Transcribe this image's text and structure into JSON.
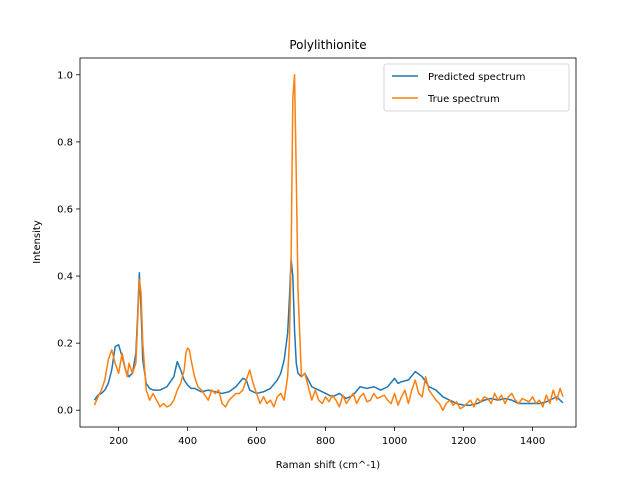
{
  "chart_data": {
    "type": "line",
    "title": "Polylithionite",
    "xlabel": "Raman shift (cm^-1)",
    "ylabel": "Intensity",
    "xlim": [
      88,
      1526
    ],
    "ylim": [
      -0.05,
      1.05
    ],
    "xticks": [
      200,
      400,
      600,
      800,
      1000,
      1200,
      1400
    ],
    "yticks": [
      0.0,
      0.2,
      0.4,
      0.6,
      0.8,
      1.0
    ],
    "grid": false,
    "legend_position": "top-right",
    "series": [
      {
        "name": "Predicted spectrum",
        "color": "#1f77b4",
        "x": [
          130,
          140,
          150,
          160,
          170,
          180,
          190,
          200,
          210,
          220,
          230,
          240,
          250,
          255,
          260,
          265,
          270,
          280,
          290,
          300,
          320,
          340,
          360,
          370,
          380,
          390,
          400,
          410,
          420,
          440,
          460,
          480,
          500,
          520,
          540,
          560,
          570,
          580,
          600,
          620,
          640,
          660,
          670,
          680,
          690,
          695,
          700,
          705,
          710,
          715,
          720,
          730,
          740,
          760,
          780,
          800,
          820,
          840,
          860,
          880,
          900,
          920,
          940,
          960,
          980,
          1000,
          1010,
          1020,
          1040,
          1060,
          1080,
          1100,
          1120,
          1140,
          1160,
          1180,
          1200,
          1220,
          1240,
          1260,
          1280,
          1300,
          1320,
          1340,
          1360,
          1380,
          1400,
          1420,
          1440,
          1460,
          1470,
          1480,
          1488
        ],
        "y": [
          0.03,
          0.045,
          0.05,
          0.06,
          0.08,
          0.12,
          0.19,
          0.195,
          0.16,
          0.12,
          0.1,
          0.11,
          0.17,
          0.28,
          0.41,
          0.3,
          0.15,
          0.08,
          0.065,
          0.06,
          0.06,
          0.07,
          0.1,
          0.145,
          0.12,
          0.09,
          0.075,
          0.065,
          0.065,
          0.055,
          0.06,
          0.055,
          0.05,
          0.055,
          0.07,
          0.095,
          0.09,
          0.06,
          0.05,
          0.055,
          0.065,
          0.09,
          0.11,
          0.15,
          0.23,
          0.33,
          0.45,
          0.4,
          0.24,
          0.14,
          0.11,
          0.1,
          0.11,
          0.07,
          0.06,
          0.05,
          0.04,
          0.05,
          0.035,
          0.045,
          0.07,
          0.065,
          0.07,
          0.06,
          0.07,
          0.095,
          0.08,
          0.085,
          0.09,
          0.115,
          0.1,
          0.07,
          0.06,
          0.04,
          0.03,
          0.02,
          0.015,
          0.015,
          0.02,
          0.03,
          0.035,
          0.03,
          0.035,
          0.03,
          0.02,
          0.02,
          0.02,
          0.02,
          0.025,
          0.035,
          0.04,
          0.03,
          0.022
        ]
      },
      {
        "name": "True spectrum",
        "color": "#ff7f0e",
        "x": [
          130,
          140,
          150,
          160,
          170,
          180,
          190,
          200,
          210,
          220,
          225,
          230,
          240,
          250,
          255,
          260,
          265,
          270,
          280,
          290,
          300,
          310,
          320,
          330,
          340,
          350,
          360,
          370,
          380,
          390,
          395,
          400,
          405,
          410,
          420,
          430,
          440,
          450,
          460,
          470,
          480,
          490,
          500,
          510,
          520,
          530,
          540,
          550,
          560,
          570,
          580,
          590,
          600,
          610,
          620,
          630,
          640,
          650,
          660,
          670,
          680,
          690,
          695,
          700,
          705,
          710,
          715,
          720,
          730,
          740,
          750,
          760,
          770,
          780,
          790,
          800,
          810,
          820,
          830,
          840,
          850,
          860,
          870,
          880,
          890,
          900,
          910,
          920,
          930,
          940,
          950,
          960,
          970,
          980,
          990,
          1000,
          1010,
          1020,
          1030,
          1040,
          1050,
          1060,
          1070,
          1080,
          1090,
          1100,
          1110,
          1120,
          1130,
          1140,
          1150,
          1160,
          1170,
          1180,
          1190,
          1200,
          1210,
          1220,
          1230,
          1240,
          1250,
          1260,
          1270,
          1280,
          1290,
          1300,
          1310,
          1320,
          1330,
          1340,
          1350,
          1360,
          1370,
          1380,
          1390,
          1400,
          1410,
          1420,
          1430,
          1440,
          1450,
          1460,
          1470,
          1480,
          1488
        ],
        "y": [
          0.015,
          0.04,
          0.06,
          0.09,
          0.15,
          0.18,
          0.14,
          0.11,
          0.17,
          0.12,
          0.1,
          0.14,
          0.11,
          0.14,
          0.26,
          0.39,
          0.35,
          0.2,
          0.06,
          0.03,
          0.05,
          0.03,
          0.01,
          0.02,
          0.01,
          0.015,
          0.03,
          0.06,
          0.08,
          0.12,
          0.17,
          0.185,
          0.18,
          0.15,
          0.1,
          0.07,
          0.06,
          0.045,
          0.03,
          0.06,
          0.05,
          0.06,
          0.02,
          0.01,
          0.03,
          0.04,
          0.05,
          0.05,
          0.06,
          0.09,
          0.12,
          0.08,
          0.05,
          0.02,
          0.04,
          0.02,
          0.03,
          0.01,
          0.04,
          0.05,
          0.03,
          0.1,
          0.2,
          0.45,
          0.93,
          1.0,
          0.7,
          0.36,
          0.1,
          0.11,
          0.07,
          0.03,
          0.06,
          0.03,
          0.02,
          0.04,
          0.025,
          0.045,
          0.03,
          0.01,
          0.045,
          0.02,
          0.035,
          0.05,
          0.02,
          0.04,
          0.05,
          0.025,
          0.03,
          0.05,
          0.035,
          0.04,
          0.045,
          0.03,
          0.02,
          0.05,
          0.015,
          0.04,
          0.06,
          0.02,
          0.06,
          0.09,
          0.05,
          0.04,
          0.1,
          0.06,
          0.045,
          0.03,
          0.02,
          0.0,
          0.02,
          0.03,
          0.015,
          0.025,
          0.005,
          0.01,
          0.02,
          0.03,
          0.01,
          0.035,
          0.025,
          0.04,
          0.035,
          0.02,
          0.05,
          0.03,
          0.045,
          0.02,
          0.04,
          0.05,
          0.03,
          0.02,
          0.035,
          0.03,
          0.025,
          0.04,
          0.02,
          0.03,
          0.01,
          0.045,
          0.02,
          0.06,
          0.03,
          0.065,
          0.04
        ]
      }
    ]
  }
}
